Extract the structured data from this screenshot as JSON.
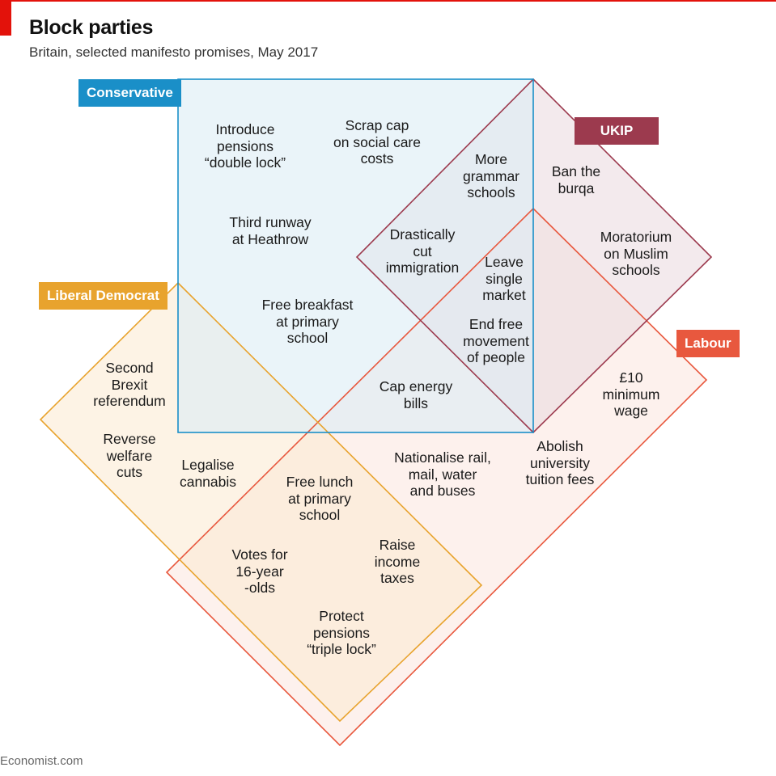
{
  "header": {
    "title": "Block parties",
    "subtitle": "Britain, selected manifesto promises, May 2017"
  },
  "footer": {
    "source": "Economist.com"
  },
  "parties": {
    "conservative": {
      "label": "Conservative",
      "color": "#1a8fc8"
    },
    "ukip": {
      "label": "UKIP",
      "color": "#9c3a4e"
    },
    "libdem": {
      "label": "Liberal Democrat",
      "color": "#e8a32d"
    },
    "labour": {
      "label": "Labour",
      "color": "#e8583e"
    }
  },
  "promises": [
    {
      "id": "introduce-pensions-double-lock",
      "lines": [
        "Introduce",
        "pensions",
        "“double lock”"
      ]
    },
    {
      "id": "scrap-cap-social-care",
      "lines": [
        "Scrap cap",
        "on social care",
        "costs"
      ]
    },
    {
      "id": "more-grammar-schools",
      "lines": [
        "More",
        "grammar",
        "schools"
      ]
    },
    {
      "id": "ban-the-burqa",
      "lines": [
        "Ban the",
        "burqa"
      ]
    },
    {
      "id": "third-runway-heathrow",
      "lines": [
        "Third runway",
        "at Heathrow"
      ]
    },
    {
      "id": "drastically-cut-immigration",
      "lines": [
        "Drastically",
        "cut",
        "immigration"
      ]
    },
    {
      "id": "leave-single-market",
      "lines": [
        "Leave",
        "single",
        "market"
      ]
    },
    {
      "id": "moratorium-muslim-schools",
      "lines": [
        "Moratorium",
        "on Muslim",
        "schools"
      ]
    },
    {
      "id": "free-breakfast-primary-school",
      "lines": [
        "Free breakfast",
        "at primary",
        "school"
      ]
    },
    {
      "id": "end-free-movement",
      "lines": [
        "End free",
        "movement",
        "of people"
      ]
    },
    {
      "id": "second-brexit-referendum",
      "lines": [
        "Second",
        "Brexit",
        "referendum"
      ]
    },
    {
      "id": "ten-pound-minimum-wage",
      "lines": [
        "£10",
        "minimum",
        "wage"
      ]
    },
    {
      "id": "cap-energy-bills",
      "lines": [
        "Cap energy",
        "bills"
      ]
    },
    {
      "id": "reverse-welfare-cuts",
      "lines": [
        "Reverse",
        "welfare",
        "cuts"
      ]
    },
    {
      "id": "abolish-university-tuition-fees",
      "lines": [
        "Abolish",
        "university",
        "tuition fees"
      ]
    },
    {
      "id": "legalise-cannabis",
      "lines": [
        "Legalise",
        "cannabis"
      ]
    },
    {
      "id": "nationalise-rail-mail",
      "lines": [
        "Nationalise rail,",
        "mail, water",
        "and buses"
      ]
    },
    {
      "id": "free-lunch-primary-school",
      "lines": [
        "Free lunch",
        "at primary",
        "school"
      ]
    },
    {
      "id": "raise-income-taxes",
      "lines": [
        "Raise",
        "income",
        "taxes"
      ]
    },
    {
      "id": "votes-for-16-year-olds",
      "lines": [
        "Votes for",
        "16-year",
        "-olds"
      ]
    },
    {
      "id": "protect-pensions-triple-lock",
      "lines": [
        "Protect",
        "pensions",
        "“triple lock”"
      ]
    }
  ]
}
